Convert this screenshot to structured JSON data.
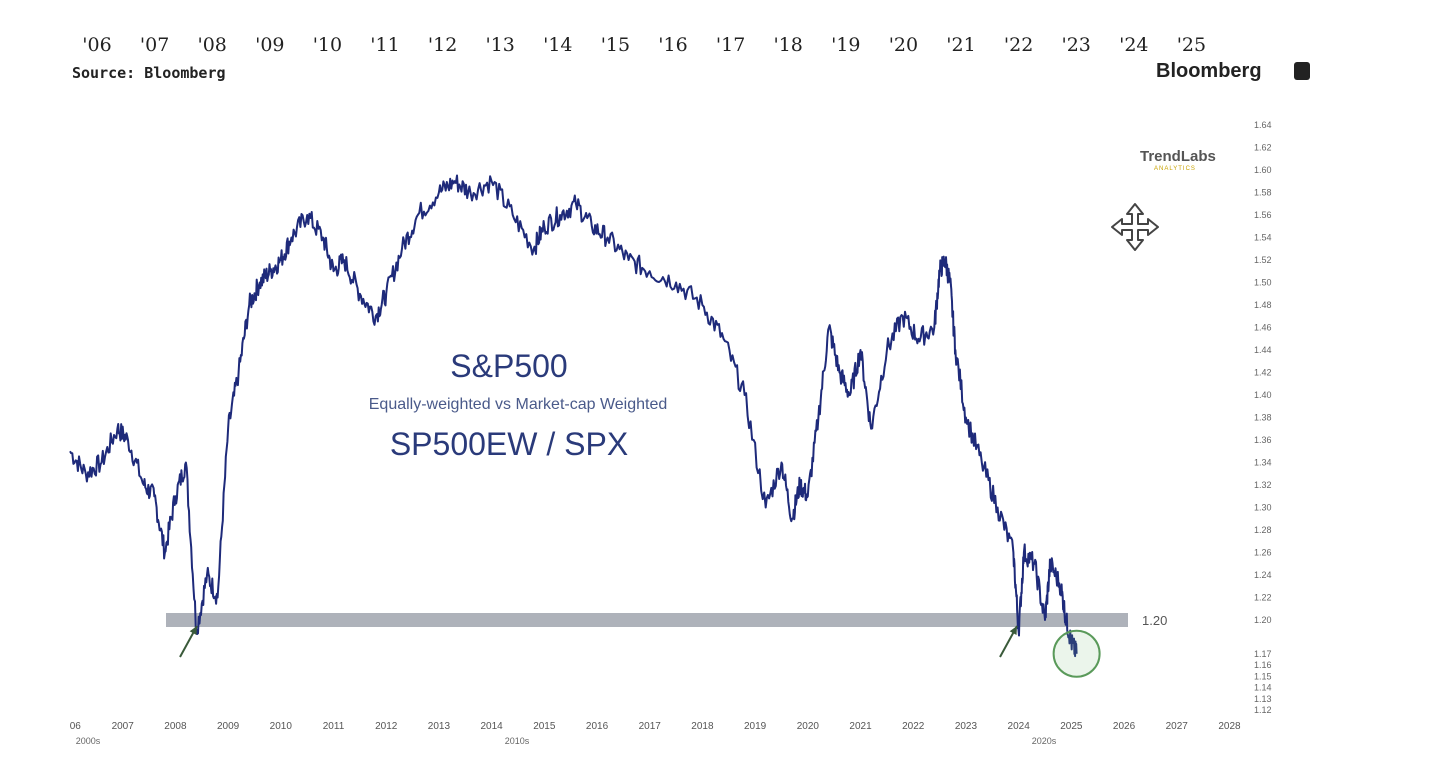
{
  "top_axis": {
    "ticks": [
      "'06",
      "'07",
      "'08",
      "'09",
      "'10",
      "'11",
      "'12",
      "'13",
      "'14",
      "'15",
      "'16",
      "'17",
      "'18",
      "'19",
      "'20",
      "'21",
      "'22",
      "'23",
      "'24",
      "'25"
    ]
  },
  "source_label": "Source: Bloomberg",
  "brand": "Bloomberg",
  "watermark": {
    "name": "TrendLabs",
    "tagline": "ANALYTICS"
  },
  "titles": {
    "main": "S&P500",
    "subtitle": "Equally-weighted vs Market-cap Weighted",
    "ticker": "SP500EW / SPX"
  },
  "colors": {
    "line": "#1e2a7a",
    "support_band": "#aeb2ba",
    "circle": "#5a9a5a",
    "arrow": "#3a5a3a"
  },
  "chart_data": {
    "type": "line",
    "series": [
      {
        "x": [
          2006.0,
          2006.3,
          2006.6,
          2006.9,
          2007.1,
          2007.4,
          2007.6,
          2007.8,
          2008.0,
          2008.2,
          2008.4,
          2008.6,
          2008.8,
          2009.0,
          2009.2,
          2009.4,
          2009.6,
          2009.8,
          2010.0,
          2010.2,
          2010.5,
          2010.8,
          2011.0,
          2011.2,
          2011.5,
          2011.8,
          2012.0,
          2012.3,
          2012.6,
          2013.0,
          2013.3,
          2013.6,
          2014.0,
          2014.4,
          2014.8,
          2015.0,
          2015.3,
          2015.6,
          2015.9,
          2016.2,
          2016.6,
          2017.0,
          2017.5,
          2018.0,
          2018.4,
          2018.8,
          2019.2,
          2019.5,
          2019.7,
          2019.85,
          2020.0,
          2020.2,
          2020.4,
          2020.6,
          2020.8,
          2021.0,
          2021.2,
          2021.5,
          2021.8,
          2022.1,
          2022.4,
          2022.5,
          2022.6,
          2022.7,
          2022.8,
          2023.0,
          2023.3,
          2023.6,
          2023.9,
          2024.0,
          2024.1,
          2024.3,
          2024.5,
          2024.6,
          2024.8,
          2024.9,
          2025.0,
          2025.1
        ],
        "y": [
          1.35,
          1.33,
          1.34,
          1.37,
          1.36,
          1.32,
          1.31,
          1.26,
          1.31,
          1.34,
          1.19,
          1.24,
          1.22,
          1.37,
          1.42,
          1.48,
          1.5,
          1.51,
          1.52,
          1.54,
          1.56,
          1.54,
          1.51,
          1.52,
          1.49,
          1.47,
          1.49,
          1.53,
          1.56,
          1.58,
          1.59,
          1.58,
          1.59,
          1.56,
          1.53,
          1.55,
          1.56,
          1.57,
          1.55,
          1.54,
          1.52,
          1.51,
          1.5,
          1.48,
          1.45,
          1.4,
          1.3,
          1.34,
          1.29,
          1.32,
          1.31,
          1.38,
          1.46,
          1.42,
          1.4,
          1.44,
          1.37,
          1.44,
          1.47,
          1.45,
          1.46,
          1.51,
          1.52,
          1.5,
          1.44,
          1.38,
          1.34,
          1.3,
          1.26,
          1.19,
          1.26,
          1.25,
          1.2,
          1.25,
          1.23,
          1.2,
          1.18,
          1.17
        ]
      }
    ],
    "x_ticks": [
      "06",
      "2007",
      "2008",
      "2009",
      "2010",
      "2011",
      "2012",
      "2013",
      "2014",
      "2015",
      "2016",
      "2017",
      "2018",
      "2019",
      "2020",
      "2021",
      "2022",
      "2023",
      "2024",
      "2025",
      "2026",
      "2027",
      "2028"
    ],
    "x_sublabels": [
      "2000s",
      "2010s",
      "2020s"
    ],
    "xlim": [
      2006,
      2028.2
    ],
    "y_ticks": [
      "1.64",
      "1.62",
      "1.60",
      "1.58",
      "1.56",
      "1.54",
      "1.52",
      "1.50",
      "1.48",
      "1.46",
      "1.44",
      "1.42",
      "1.40",
      "1.38",
      "1.36",
      "1.34",
      "1.32",
      "1.30",
      "1.28",
      "1.26",
      "1.24",
      "1.22",
      "1.20",
      "1.17",
      "1.16",
      "1.15",
      "1.14",
      "1.13",
      "1.12"
    ],
    "ylim": [
      1.12,
      1.64
    ],
    "support_level": 1.2,
    "support_label": "1.20",
    "grid": false
  }
}
